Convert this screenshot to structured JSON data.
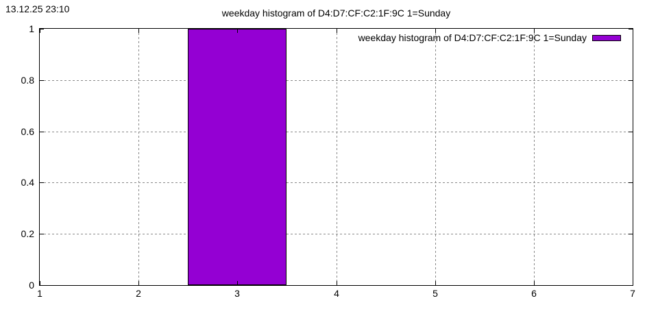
{
  "header": {
    "timestamp": "13.12.25 23:10"
  },
  "legend": {
    "label": "weekday histogram of D4:D7:CF:C2:1F:9C 1=Sunday",
    "swatch_color": "#9400D3"
  },
  "chart_data": {
    "type": "bar",
    "title": "weekday histogram of D4:D7:CF:C2:1F:9C 1=Sunday",
    "x": [
      3
    ],
    "values": [
      1
    ],
    "bar_width": 1,
    "xlim": [
      1,
      7
    ],
    "ylim": [
      0,
      1
    ],
    "x_ticks": [
      1,
      2,
      3,
      4,
      5,
      6,
      7
    ],
    "x_tick_labels": [
      "1",
      "2",
      "3",
      "4",
      "5",
      "6",
      "7"
    ],
    "y_ticks": [
      0,
      0.2,
      0.4,
      0.6,
      0.8,
      1
    ],
    "y_tick_labels": [
      "0",
      "0.2",
      "0.4",
      "0.6",
      "0.8",
      "1"
    ],
    "grid": true,
    "grid_style": "dashed",
    "grid_color": "#888888",
    "bar_color": "#9400D3",
    "axis_color": "#000000",
    "legend_position": "top-right",
    "xlabel": "",
    "ylabel": ""
  }
}
